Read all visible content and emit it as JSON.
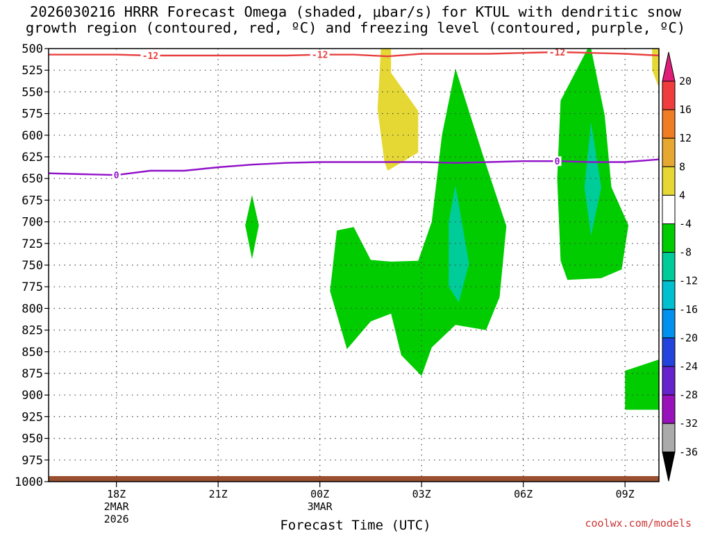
{
  "title_line1": "2026030216 HRRR Forecast Omega (shaded, μbar/s) for KTUL with dendritic snow",
  "title_line2": "growth region (contoured, red, ºC) and freezing level (contoured, purple, ºC)",
  "credit": "coolwx.com/models",
  "chart_data": {
    "type": "heatmap",
    "title": "2026030216 HRRR Forecast Omega (shaded, μbar/s) for KTUL with dendritic snow growth region (contoured, red, ºC) and freezing level (contoured, purple, ºC)",
    "xlabel": "Forecast Time (UTC)",
    "ylabel": "",
    "x_unit": "hours since 2026-03-02 16Z",
    "xlim": [
      0,
      18
    ],
    "ylim": [
      1000,
      500
    ],
    "y_ticks": [
      500,
      525,
      550,
      575,
      600,
      625,
      650,
      675,
      700,
      725,
      750,
      775,
      800,
      825,
      850,
      875,
      900,
      925,
      950,
      975,
      1000
    ],
    "x_ticks": [
      {
        "x": 2,
        "label": "18Z",
        "sub1": "2MAR",
        "sub2": "2026"
      },
      {
        "x": 5,
        "label": "21Z",
        "sub1": "",
        "sub2": ""
      },
      {
        "x": 8,
        "label": "00Z",
        "sub1": "3MAR",
        "sub2": ""
      },
      {
        "x": 11,
        "label": "03Z",
        "sub1": "",
        "sub2": ""
      },
      {
        "x": 14,
        "label": "06Z",
        "sub1": "",
        "sub2": ""
      },
      {
        "x": 17,
        "label": "09Z",
        "sub1": "",
        "sub2": ""
      }
    ],
    "grid": true,
    "colorbar": {
      "position": "right",
      "labels": [
        "20",
        "16",
        "12",
        "8",
        "4",
        "-4",
        "-8",
        "-12",
        "-16",
        "-20",
        "-24",
        "-28",
        "-32",
        "-36"
      ],
      "colors": [
        "#e01e78",
        "#f03c3c",
        "#f07c24",
        "#e6a830",
        "#e6d834",
        "#ffffff",
        "#00cc00",
        "#00cc99",
        "#00c0d0",
        "#0090ee",
        "#2244dd",
        "#6622cc",
        "#9911bb",
        "#aaaaaa",
        "#000000"
      ]
    },
    "omega_regions": [
      {
        "level": "4",
        "color": "#e6d834",
        "points": [
          [
            9.8,
            500
          ],
          [
            10.1,
            500
          ],
          [
            10.1,
            528
          ],
          [
            10.9,
            572
          ],
          [
            10.9,
            620
          ],
          [
            10.0,
            641
          ],
          [
            9.9,
            630
          ],
          [
            9.7,
            570
          ]
        ]
      },
      {
        "level": "4",
        "color": "#e6d834",
        "points": [
          [
            17.8,
            500
          ],
          [
            18,
            500
          ],
          [
            18,
            545
          ],
          [
            17.8,
            525
          ]
        ]
      },
      {
        "level": "-4",
        "color": "#00cc00",
        "points": [
          [
            6.0,
            669
          ],
          [
            6.2,
            704
          ],
          [
            6.0,
            743
          ],
          [
            5.8,
            704
          ]
        ]
      },
      {
        "level": "-4",
        "color": "#00cc00",
        "points": [
          [
            12.0,
            523
          ],
          [
            12.8,
            622
          ],
          [
            13.5,
            705
          ],
          [
            13.3,
            787
          ],
          [
            12.9,
            825
          ],
          [
            12.0,
            819
          ],
          [
            11.3,
            845
          ],
          [
            11.0,
            878
          ],
          [
            10.4,
            854
          ],
          [
            10.1,
            806
          ],
          [
            9.5,
            815
          ],
          [
            8.8,
            847
          ],
          [
            8.3,
            780
          ],
          [
            8.5,
            710
          ],
          [
            9.0,
            706
          ],
          [
            9.5,
            744
          ],
          [
            10.1,
            746
          ],
          [
            10.9,
            745
          ],
          [
            11.3,
            700
          ],
          [
            11.6,
            600
          ]
        ]
      },
      {
        "level": "-4",
        "color": "#00cc00",
        "points": [
          [
            16.0,
            500
          ],
          [
            16.4,
            577
          ],
          [
            16.6,
            660
          ],
          [
            17.1,
            704
          ],
          [
            16.9,
            755
          ],
          [
            16.3,
            765
          ],
          [
            15.3,
            767
          ],
          [
            15.1,
            745
          ],
          [
            15.0,
            650
          ],
          [
            15.1,
            560
          ],
          [
            15.9,
            500
          ]
        ]
      },
      {
        "level": "-4",
        "color": "#00cc00",
        "points": [
          [
            17.0,
            872
          ],
          [
            18,
            859
          ],
          [
            18,
            917
          ],
          [
            17.0,
            917
          ]
        ]
      },
      {
        "level": "-8",
        "color": "#00cc99",
        "points": [
          [
            12.0,
            658
          ],
          [
            12.4,
            748
          ],
          [
            12.1,
            793
          ],
          [
            11.8,
            775
          ],
          [
            11.8,
            700
          ]
        ]
      },
      {
        "level": "-8",
        "color": "#00cc99",
        "points": [
          [
            16.0,
            585
          ],
          [
            16.3,
            660
          ],
          [
            16.0,
            716
          ],
          [
            15.8,
            660
          ]
        ]
      }
    ],
    "series": [
      {
        "name": "",
        "label": "-12",
        "color": "#e84040",
        "x": [
          0,
          1,
          2,
          3,
          4,
          5,
          6,
          7,
          8,
          9,
          10,
          11,
          12,
          13,
          14,
          15,
          16,
          17,
          18
        ],
        "y": [
          507,
          507,
          507,
          508,
          508,
          508,
          508,
          508,
          507,
          507,
          509,
          506,
          506,
          506,
          505,
          504,
          505,
          506,
          508
        ]
      },
      {
        "name": "",
        "label": "0",
        "color": "#9010c8",
        "x": [
          0,
          1,
          2,
          3,
          4,
          5,
          6,
          7,
          8,
          9,
          10,
          11,
          12,
          13,
          14,
          15,
          16,
          17,
          18
        ],
        "y": [
          644,
          645,
          646,
          641,
          641,
          637,
          634,
          632,
          631,
          631,
          631,
          631,
          632,
          631,
          630,
          630,
          631,
          631,
          628
        ]
      }
    ]
  }
}
